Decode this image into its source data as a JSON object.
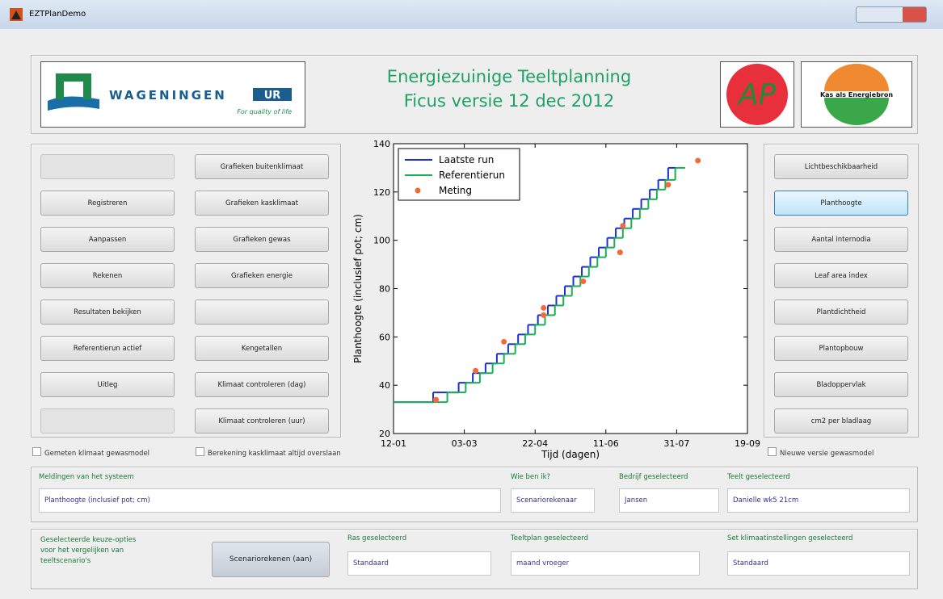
{
  "window": {
    "title": "EZTPlanDemo"
  },
  "header": {
    "logo": {
      "name": "WAGENINGEN",
      "badge": "UR",
      "tagline": "For quality of life"
    },
    "title": [
      "Energiezuinige Teeltplanning",
      "Ficus versie 12 dec 2012"
    ],
    "logo_ap": "AP",
    "logo_kas": "Kas als Energiebron"
  },
  "left_buttons": [
    [
      null,
      "Registreren",
      "Aanpassen",
      "Rekenen",
      "Resultaten bekijken",
      "Referentierun actief",
      "Uitleg",
      null
    ],
    [
      "Grafieken buitenklimaat",
      "Grafieken kasklimaat",
      "Grafieken gewas",
      "Grafieken energie",
      null,
      "Kengetallen",
      "Klimaat controleren (dag)",
      "Klimaat controleren (uur)"
    ]
  ],
  "right_buttons": [
    "Lichtbeschikbaarheid",
    "Planthoogte",
    "Aantal internodia",
    "Leaf area index",
    "Plantdichtheid",
    "Plantopbouw",
    "Bladoppervlak",
    "cm2 per bladlaag"
  ],
  "selected_index": 1,
  "checkboxes": [
    "Gemeten klimaat gewasmodel",
    "Berekening kasklimaat altijd overslaan",
    "Nieuwe versie gewasmodel"
  ],
  "status": [
    {
      "label": "Meldingen van het systeem",
      "value": "Planthoogte (inclusief pot; cm)"
    },
    {
      "label": "Wie ben ik?",
      "value": "Scenariorekenaar"
    },
    {
      "label": "Bedrijf geselecteerd",
      "value": "Jansen"
    },
    {
      "label": "Teelt geselecteerd",
      "value": "Danielle wk5 21cm"
    }
  ],
  "bottom": {
    "note": [
      "Geselecteerde keuze-opties",
      "voor het vergelijken van",
      "teeltscenario's"
    ],
    "button": "Scenariorekenen (aan)",
    "fields": [
      {
        "label": "Ras geselecteerd",
        "value": "Standaard"
      },
      {
        "label": "Teeltplan geselecteerd",
        "value": "maand vroeger"
      },
      {
        "label": "Set klimaatinstellingen geselecteerd",
        "value": "Standaard"
      }
    ]
  },
  "chart_data": {
    "type": "step",
    "x_label": "Tijd (dagen)",
    "y_label": "Planthoogte (inclusief pot; cm)",
    "xlim": [
      12,
      262
    ],
    "xticks": [
      {
        "value": 12,
        "label": "12-01"
      },
      {
        "value": 62,
        "label": "03-03"
      },
      {
        "value": 112,
        "label": "22-04"
      },
      {
        "value": 162,
        "label": "11-06"
      },
      {
        "value": 212,
        "label": "31-07"
      },
      {
        "value": 262,
        "label": "19-09"
      }
    ],
    "ylim": [
      20,
      140
    ],
    "yticks": [
      20,
      40,
      60,
      80,
      100,
      120,
      140
    ],
    "legend": "upper left",
    "series": [
      {
        "name": "Laatste run",
        "color": "#1b2fd6",
        "kind": "step",
        "x": [
          12,
          40,
          58,
          68,
          77,
          85,
          93,
          100,
          107,
          114,
          121,
          127,
          133,
          139,
          145,
          151,
          157,
          163,
          169,
          175,
          181,
          187,
          193,
          199,
          206,
          212
        ],
        "values": [
          33,
          37,
          41,
          45,
          49,
          53,
          57,
          61,
          65,
          69,
          73,
          77,
          81,
          85,
          89,
          93,
          97,
          101,
          105,
          109,
          113,
          117,
          121,
          125,
          130,
          130
        ]
      },
      {
        "name": "Referentierun",
        "color": "#19b050",
        "kind": "step",
        "x": [
          12,
          50,
          63,
          73,
          82,
          90,
          98,
          105,
          112,
          119,
          126,
          132,
          138,
          144,
          150,
          156,
          162,
          168,
          174,
          180,
          186,
          192,
          198,
          204,
          211,
          218
        ],
        "values": [
          33,
          37,
          41,
          45,
          49,
          53,
          57,
          61,
          65,
          69,
          73,
          77,
          81,
          85,
          89,
          93,
          97,
          101,
          105,
          109,
          113,
          117,
          121,
          125,
          130,
          130
        ]
      },
      {
        "name": "Meting",
        "color": "#f26a3c",
        "kind": "scatter",
        "x": [
          42,
          70,
          90,
          118,
          118,
          146,
          172,
          174,
          206,
          227
        ],
        "values": [
          34,
          46,
          58,
          69,
          72,
          83,
          95,
          106,
          123,
          133
        ]
      }
    ]
  }
}
